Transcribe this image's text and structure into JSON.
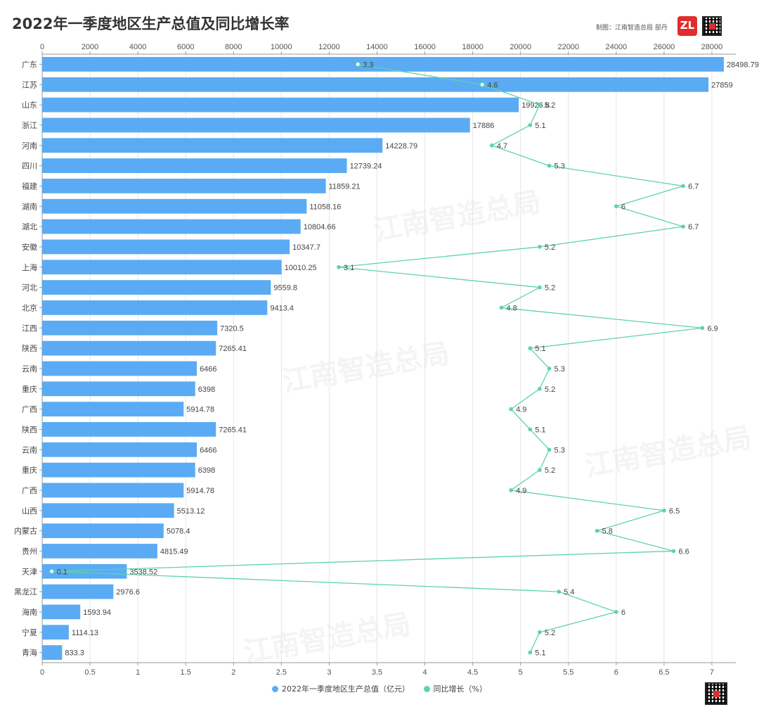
{
  "title": "2022年一季度地区生产总值及同比增长率",
  "credit": "制图：江南智造总局 部丹",
  "logo_text": "ZL",
  "watermark": "江南智造总局",
  "colors": {
    "bar": "#5aabf3",
    "line": "#5ed3ad",
    "grid": "#e6e6e6",
    "axis": "#999999"
  },
  "legend": [
    {
      "label": "2022年一季度地区生产总值（亿元）",
      "color": "#5aabf3"
    },
    {
      "label": "同比增长（%）",
      "color": "#5ed3ad"
    }
  ],
  "chart_data": {
    "type": "bar",
    "orientation": "horizontal",
    "categories": [
      "广东",
      "江苏",
      "山东",
      "浙江",
      "河南",
      "四川",
      "福建",
      "湖南",
      "湖北",
      "安徽",
      "上海",
      "河北",
      "北京",
      "江西",
      "陕西",
      "云南",
      "重庆",
      "广西",
      "陕西",
      "云南",
      "重庆",
      "广西",
      "山西",
      "内蒙古",
      "贵州",
      "天津",
      "黑龙江",
      "海南",
      "宁夏",
      "青海"
    ],
    "series": [
      {
        "name": "2022年一季度地区生产总值（亿元）",
        "type": "bar",
        "axis": "top",
        "values": [
          28498.79,
          27859,
          19926.8,
          17886,
          14228.79,
          12739.24,
          11859.21,
          11058.16,
          10804.66,
          10347.7,
          10010.25,
          9559.8,
          9413.4,
          7320.5,
          7265.41,
          6466,
          6398,
          5914.78,
          7265.41,
          6466,
          6398,
          5914.78,
          5513.12,
          5078.4,
          4815.49,
          3538.52,
          2976.6,
          1593.94,
          1114.13,
          833.3
        ],
        "labels": [
          "28498.79",
          "27859",
          "19926.8",
          "17886",
          "14228.79",
          "12739.24",
          "11859.21",
          "11058.16",
          "10804.66",
          "10347.7",
          "10010.25",
          "9559.8",
          "9413.4",
          "7320.5",
          "7265.41",
          "6466",
          "6398",
          "5914.78",
          "7265.41",
          "6466",
          "6398",
          "5914.78",
          "5513.12",
          "5078.4",
          "4815.49",
          "3538.52",
          "2976.6",
          "1593.94",
          "1114.13",
          "833.3"
        ]
      },
      {
        "name": "同比增长（%）",
        "type": "line",
        "axis": "bottom",
        "values": [
          3.3,
          4.6,
          5.2,
          5.1,
          4.7,
          5.3,
          6.7,
          6,
          6.7,
          5.2,
          3.1,
          5.2,
          4.8,
          6.9,
          5.1,
          5.3,
          5.2,
          4.9,
          5.1,
          5.3,
          5.2,
          4.9,
          6.5,
          5.8,
          6.6,
          0.1,
          5.4,
          6,
          5.2,
          5.1
        ],
        "labels": [
          "3.3",
          "4.6",
          "5.2",
          "5.1",
          "4.7",
          "5.3",
          "6.7",
          "6",
          "6.7",
          "5.2",
          "3.1",
          "5.2",
          "4.8",
          "6.9",
          "5.1",
          "5.3",
          "5.2",
          "4.9",
          "5.1",
          "5.3",
          "5.2",
          "4.9",
          "6.5",
          "5.8",
          "6.6",
          "0.1",
          "5.4",
          "6",
          "5.2",
          "5.1"
        ]
      }
    ],
    "top_axis": {
      "min": 0,
      "max": 29000,
      "ticks": [
        0,
        2000,
        4000,
        6000,
        8000,
        10000,
        12000,
        14000,
        16000,
        18000,
        20000,
        22000,
        24000,
        26000,
        28000
      ],
      "tick_labels": [
        "0",
        "2000",
        "4000",
        "6000",
        "8000",
        "10000",
        "12000",
        "14000",
        "16000",
        "18000",
        "20000",
        "22000",
        "24000",
        "26000",
        "28000"
      ]
    },
    "bottom_axis": {
      "min": 0,
      "max": 7.25,
      "ticks": [
        0,
        0.5,
        1,
        1.5,
        2,
        2.5,
        3,
        3.5,
        4,
        4.5,
        5,
        5.5,
        6,
        6.5,
        7
      ],
      "tick_labels": [
        "0",
        "0.5",
        "1",
        "1.5",
        "2",
        "2.5",
        "3",
        "3.5",
        "4",
        "4.5",
        "5",
        "5.5",
        "6",
        "6.5",
        "7"
      ]
    },
    "grid": true,
    "legend_position": "bottom-center"
  }
}
